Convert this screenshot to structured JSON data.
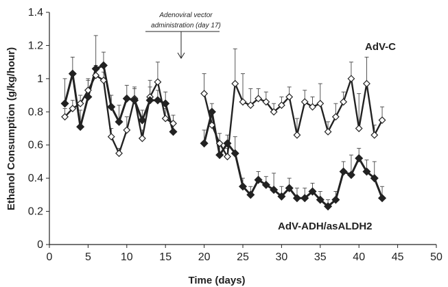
{
  "chart_data": {
    "type": "line",
    "xlabel": "Time (days)",
    "ylabel": "Ethanol Consumption (g/kg/hour)",
    "xlim": [
      0,
      50
    ],
    "ylim": [
      0,
      1.4
    ],
    "x_ticks": [
      "0",
      "5",
      "10",
      "15",
      "20",
      "25",
      "30",
      "35",
      "40",
      "45",
      "50"
    ],
    "y_ticks": [
      "0",
      "0.2",
      "0.4",
      "0.6",
      "0.8",
      "1",
      "1.2",
      "1.4"
    ],
    "grid": false,
    "annotation": {
      "lines": [
        "Adenoviral vector",
        "administration (day 17)"
      ],
      "x": 17
    },
    "series": [
      {
        "name": "AdV-C",
        "marker": "open-diamond",
        "color": "#222222",
        "segments": [
          {
            "x": [
              2,
              3,
              4,
              5,
              6,
              7,
              8,
              9,
              10,
              11,
              12,
              13,
              14,
              15,
              16
            ],
            "y": [
              0.77,
              0.82,
              0.85,
              0.93,
              1.02,
              0.99,
              0.65,
              0.55,
              0.69,
              0.88,
              0.64,
              0.89,
              0.98,
              0.76,
              0.73
            ],
            "err": [
              0.05,
              0.05,
              0.05,
              0.07,
              0.06,
              0.05,
              0.05,
              0.03,
              0.08,
              0.07,
              0.05,
              0.1,
              0.12,
              0.06,
              0.05
            ]
          },
          {
            "x": [
              20,
              21,
              22,
              23,
              24,
              25,
              26,
              27,
              28,
              29,
              30,
              31,
              32,
              33,
              34,
              35,
              36,
              37,
              38,
              39,
              40,
              41,
              42,
              43
            ],
            "y": [
              0.91,
              0.72,
              0.61,
              0.53,
              0.97,
              0.86,
              0.84,
              0.88,
              0.86,
              0.8,
              0.84,
              0.89,
              0.66,
              0.86,
              0.83,
              0.85,
              0.68,
              0.77,
              0.86,
              1.0,
              0.7,
              0.97,
              0.66,
              0.75
            ],
            "err": [
              0.12,
              0.08,
              0.06,
              0.05,
              0.21,
              0.17,
              0.1,
              0.06,
              0.06,
              0.05,
              0.05,
              0.06,
              0.1,
              0.07,
              0.06,
              0.12,
              0.06,
              0.08,
              0.06,
              0.1,
              0.21,
              0.16,
              0.06,
              0.08
            ]
          }
        ]
      },
      {
        "name": "AdV-ADH/asALDH2",
        "marker": "filled-diamond",
        "color": "#222222",
        "segments": [
          {
            "x": [
              2,
              3,
              4,
              5,
              6,
              7,
              8,
              9,
              10,
              11,
              12,
              13,
              14,
              15,
              16
            ],
            "y": [
              0.85,
              1.03,
              0.71,
              0.89,
              1.06,
              1.08,
              0.83,
              0.74,
              0.88,
              0.87,
              0.75,
              0.87,
              0.87,
              0.85,
              0.68
            ],
            "err": [
              0.15,
              0.1,
              0.1,
              0.1,
              0.2,
              0.08,
              0.07,
              0.1,
              0.08,
              0.07,
              0.06,
              0.08,
              0.06,
              0.07,
              0.06
            ]
          },
          {
            "x": [
              20,
              21,
              22,
              23,
              24,
              25,
              26,
              27,
              28,
              29,
              30,
              31,
              32,
              33,
              34,
              35,
              36,
              37,
              38,
              39,
              40,
              41,
              42,
              43
            ],
            "y": [
              0.61,
              0.8,
              0.54,
              0.61,
              0.55,
              0.35,
              0.3,
              0.39,
              0.36,
              0.33,
              0.29,
              0.34,
              0.28,
              0.28,
              0.32,
              0.27,
              0.23,
              0.27,
              0.44,
              0.42,
              0.52,
              0.44,
              0.4,
              0.28
            ],
            "err": [
              0.08,
              0.05,
              0.06,
              0.05,
              0.1,
              0.05,
              0.05,
              0.05,
              0.05,
              0.1,
              0.06,
              0.06,
              0.06,
              0.06,
              0.05,
              0.05,
              0.04,
              0.05,
              0.06,
              0.12,
              0.06,
              0.07,
              0.1,
              0.07
            ]
          }
        ]
      }
    ]
  }
}
